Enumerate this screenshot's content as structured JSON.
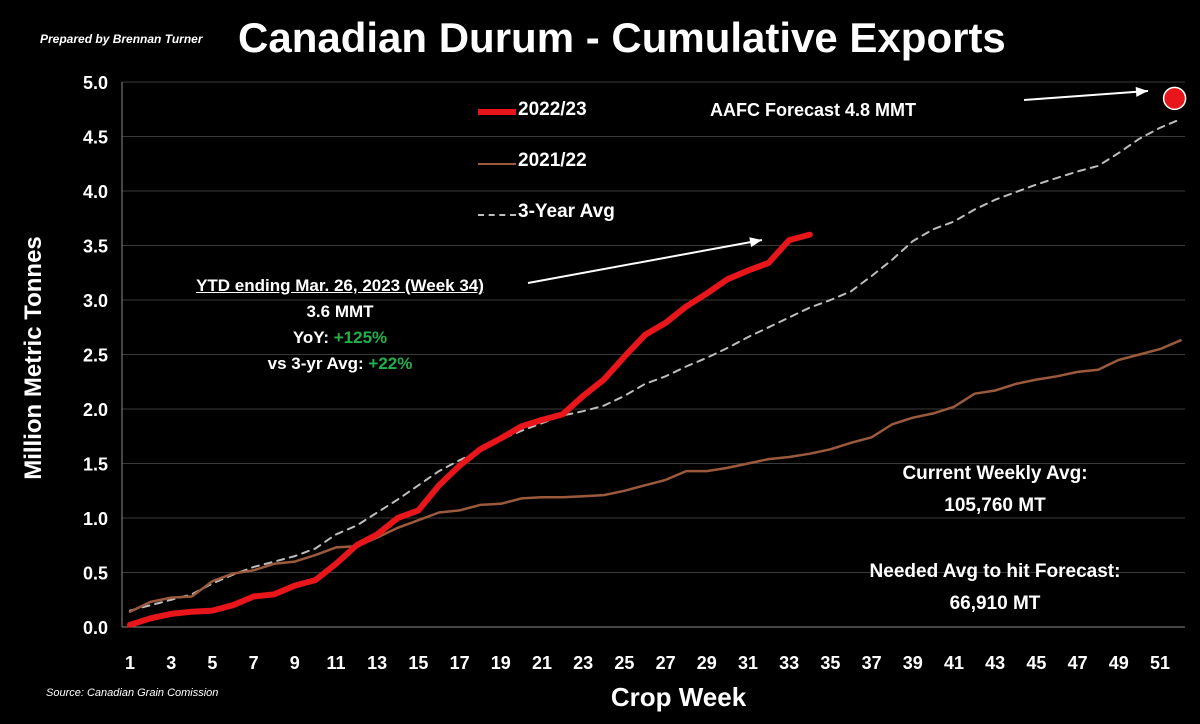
{
  "header": {
    "prepared_by": "Prepared by Brennan Turner",
    "title": "Canadian Durum - Cumulative Exports"
  },
  "footer": {
    "source": "Source: Canadian Grain Comission"
  },
  "annotations": {
    "forecast": "AAFC Forecast 4.8 MMT",
    "ytd_heading": "YTD ending Mar. 26, 2023 (Week 34)",
    "ytd_value": "3.6 MMT",
    "yoy_label": "YoY: ",
    "yoy_value": "+125%",
    "vs_avg_label": "vs 3-yr Avg: ",
    "vs_avg_value": "+22%",
    "weekly_avg_label": "Current Weekly Avg:",
    "weekly_avg_value": "105,760 MT",
    "needed_label": "Needed Avg to hit Forecast:",
    "needed_value": "66,910 MT"
  },
  "colors": {
    "background": "#000000",
    "series_2022_23": "#e8161b",
    "series_2021_22": "#9b5a3c",
    "series_3yr": "#bdbdbd",
    "grid": "#3a3a3a",
    "green_text": "#22b04a",
    "forecast_marker": "#e8161b"
  },
  "chart_data": {
    "type": "line",
    "xlabel": "Crop Week",
    "ylabel": "Million Metric Tonnes",
    "xlim": [
      1,
      52
    ],
    "ylim": [
      0,
      5
    ],
    "yticks": [
      "0.0",
      "0.5",
      "1.0",
      "1.5",
      "2.0",
      "2.5",
      "3.0",
      "3.5",
      "4.0",
      "4.5",
      "5.0"
    ],
    "xticks": [
      "1",
      "3",
      "5",
      "7",
      "9",
      "11",
      "13",
      "15",
      "17",
      "19",
      "21",
      "23",
      "25",
      "27",
      "29",
      "31",
      "33",
      "35",
      "37",
      "39",
      "41",
      "43",
      "45",
      "47",
      "49",
      "51"
    ],
    "grid": "horizontal",
    "legend_position": "top-center",
    "series": [
      {
        "name": "2022/23",
        "style": "solid-thick",
        "x": [
          1,
          2,
          3,
          4,
          5,
          6,
          7,
          8,
          9,
          10,
          11,
          12,
          13,
          14,
          15,
          16,
          17,
          18,
          19,
          20,
          21,
          22,
          23,
          24,
          25,
          26,
          27,
          28,
          29,
          30,
          31,
          32,
          33,
          34
        ],
        "y": [
          0.02,
          0.08,
          0.12,
          0.14,
          0.15,
          0.2,
          0.28,
          0.3,
          0.38,
          0.43,
          0.58,
          0.75,
          0.85,
          1.0,
          1.07,
          1.3,
          1.48,
          1.63,
          1.73,
          1.84,
          1.9,
          1.95,
          2.12,
          2.27,
          2.48,
          2.68,
          2.79,
          2.94,
          3.06,
          3.19,
          3.27,
          3.34,
          3.55,
          3.6
        ]
      },
      {
        "name": "2021/22",
        "style": "solid",
        "x": [
          1,
          2,
          3,
          4,
          5,
          6,
          7,
          8,
          9,
          10,
          11,
          12,
          13,
          14,
          15,
          16,
          17,
          18,
          19,
          20,
          21,
          22,
          23,
          24,
          25,
          26,
          27,
          28,
          29,
          30,
          31,
          32,
          33,
          34,
          35,
          36,
          37,
          38,
          39,
          40,
          41,
          42,
          43,
          44,
          45,
          46,
          47,
          48,
          49,
          50,
          51,
          52
        ],
        "y": [
          0.14,
          0.23,
          0.27,
          0.28,
          0.42,
          0.49,
          0.52,
          0.58,
          0.6,
          0.66,
          0.73,
          0.74,
          0.82,
          0.91,
          0.98,
          1.05,
          1.07,
          1.12,
          1.13,
          1.18,
          1.19,
          1.19,
          1.2,
          1.21,
          1.25,
          1.3,
          1.35,
          1.43,
          1.43,
          1.46,
          1.5,
          1.54,
          1.56,
          1.59,
          1.63,
          1.69,
          1.74,
          1.86,
          1.92,
          1.96,
          2.02,
          2.14,
          2.17,
          2.23,
          2.27,
          2.3,
          2.34,
          2.36,
          2.45,
          2.5,
          2.55,
          2.63
        ]
      },
      {
        "name": "3-Year Avg",
        "style": "dashed",
        "x": [
          1,
          2,
          3,
          4,
          5,
          6,
          7,
          8,
          9,
          10,
          11,
          12,
          13,
          14,
          15,
          16,
          17,
          18,
          19,
          20,
          21,
          22,
          23,
          24,
          25,
          26,
          27,
          28,
          29,
          30,
          31,
          32,
          33,
          34,
          35,
          36,
          37,
          38,
          39,
          40,
          41,
          42,
          43,
          44,
          45,
          46,
          47,
          48,
          49,
          50,
          51,
          52
        ],
        "y": [
          0.15,
          0.2,
          0.25,
          0.3,
          0.4,
          0.48,
          0.55,
          0.6,
          0.65,
          0.72,
          0.85,
          0.93,
          1.05,
          1.17,
          1.3,
          1.43,
          1.53,
          1.62,
          1.72,
          1.8,
          1.87,
          1.94,
          1.98,
          2.03,
          2.12,
          2.23,
          2.3,
          2.39,
          2.47,
          2.56,
          2.66,
          2.75,
          2.84,
          2.93,
          3.0,
          3.08,
          3.22,
          3.37,
          3.54,
          3.65,
          3.72,
          3.83,
          3.92,
          3.99,
          4.06,
          4.12,
          4.18,
          4.23,
          4.35,
          4.48,
          4.58,
          4.66
        ]
      }
    ],
    "forecast_point": {
      "x": 52,
      "y": 4.85
    }
  }
}
